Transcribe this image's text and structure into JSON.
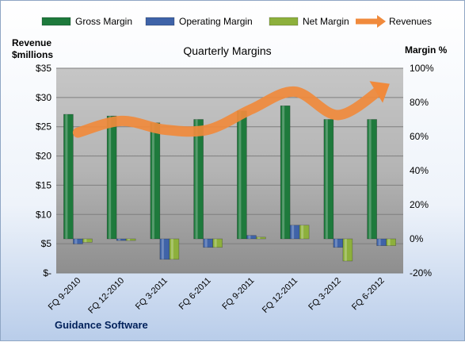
{
  "chart_data": {
    "type": "bar",
    "title": "Quarterly Margins",
    "source_label": "Guidance Software",
    "left_axis": {
      "label_line1": "Revenue",
      "label_line2": "$millions",
      "min": 0,
      "max": 35,
      "step": 5,
      "tick_labels": [
        "$-",
        "$5",
        "$10",
        "$15",
        "$20",
        "$25",
        "$30",
        "$35"
      ]
    },
    "right_axis": {
      "label": "Margin %",
      "min": -20,
      "max": 100,
      "step": 20,
      "tick_labels": [
        "-20%",
        "0%",
        "20%",
        "40%",
        "60%",
        "80%",
        "100%"
      ]
    },
    "categories": [
      "FQ 9-2010",
      "FQ 12-2010",
      "FQ 3-2011",
      "FQ 6-2011",
      "FQ 9-2011",
      "FQ 12-2011",
      "FQ 3-2012",
      "FQ 6-2012"
    ],
    "series": [
      {
        "name": "Gross Margin",
        "axis": "right",
        "color": "#1e7a3c",
        "values": [
          73,
          72,
          68,
          70,
          75,
          78,
          70,
          70
        ]
      },
      {
        "name": "Operating Margin",
        "axis": "right",
        "color": "#3f63a8",
        "values": [
          -3,
          -1,
          -12,
          -5,
          2,
          8,
          -5,
          -4
        ]
      },
      {
        "name": "Net Margin",
        "axis": "right",
        "color": "#8db03c",
        "values": [
          -2,
          -1,
          -12,
          -5,
          1,
          8,
          -13,
          -4
        ]
      },
      {
        "name": "Revenues",
        "axis": "left",
        "type": "line",
        "color": "#f08a3c",
        "values": [
          24,
          26,
          24.5,
          24.5,
          28,
          31,
          27,
          31.5
        ]
      }
    ],
    "legend_position": "top",
    "grid": true
  }
}
